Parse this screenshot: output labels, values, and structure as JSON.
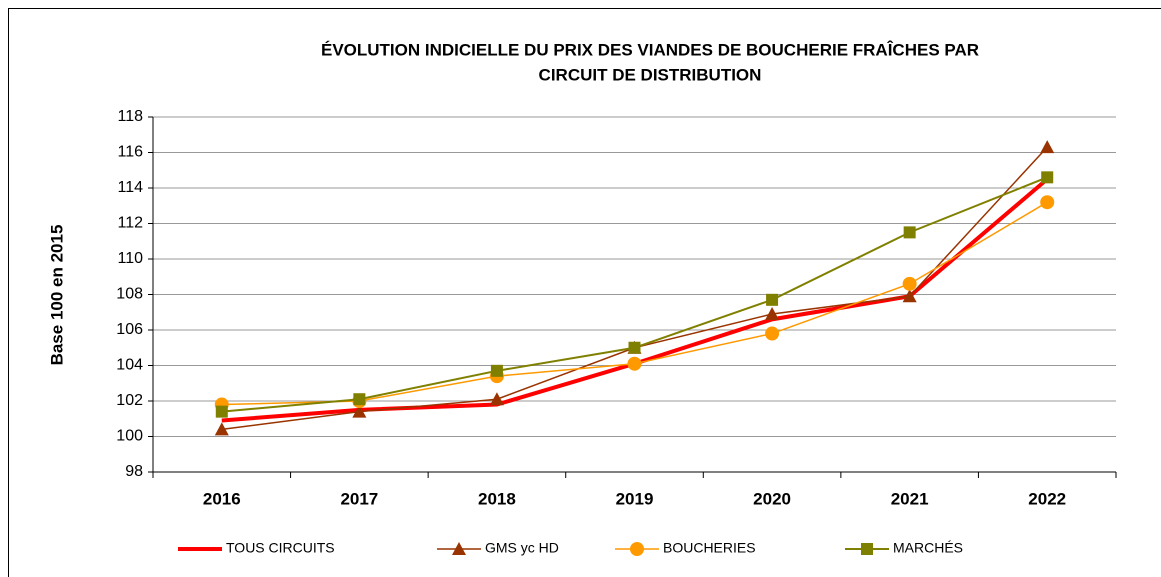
{
  "chart_data": {
    "type": "line",
    "title": [
      "ÉVOLUTION INDICIELLE DU PRIX DES VIANDES DE BOUCHERIE FRAÎCHES PAR",
      "CIRCUIT DE DISTRIBUTION"
    ],
    "y_label": "Base 100 en 2015",
    "categories": [
      "2016",
      "2017",
      "2018",
      "2019",
      "2020",
      "2021",
      "2022"
    ],
    "series": [
      {
        "name": "TOUS CIRCUITS",
        "color": "#ff0000",
        "marker": "none",
        "width": 4,
        "values": [
          100.9,
          101.5,
          101.8,
          104.1,
          106.6,
          107.9,
          114.5
        ]
      },
      {
        "name": "GMS yc HD",
        "color": "#993300",
        "marker": "triangle",
        "width": 1.5,
        "values": [
          100.4,
          101.4,
          102.1,
          105.0,
          106.9,
          107.9,
          116.3
        ]
      },
      {
        "name": "BOUCHERIES",
        "color": "#ff9900",
        "marker": "circle",
        "width": 1.5,
        "values": [
          101.8,
          102.0,
          103.4,
          104.1,
          105.8,
          108.6,
          113.2
        ]
      },
      {
        "name": "MARCHÉS",
        "color": "#808000",
        "marker": "square",
        "width": 2,
        "values": [
          101.4,
          102.1,
          103.7,
          105.0,
          107.7,
          111.5,
          114.6
        ]
      }
    ],
    "ylim": [
      98,
      118
    ],
    "yticks": [
      98,
      100,
      102,
      104,
      106,
      108,
      110,
      112,
      114,
      116,
      118
    ],
    "grid": true,
    "legend": "bottom"
  }
}
